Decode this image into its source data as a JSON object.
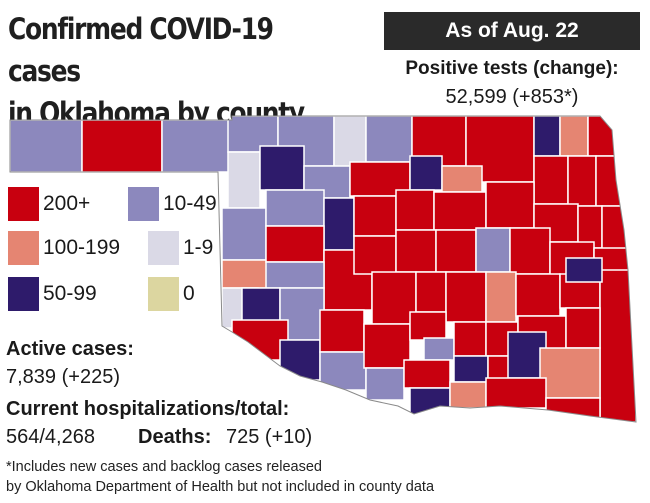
{
  "title_line1": "Confirmed COVID-19 cases",
  "title_line2": "in Oklahoma by county",
  "date_label": "As of Aug. 22",
  "positive_tests": {
    "label": "Positive tests (change):",
    "value": "52,599 (+853*)"
  },
  "legend": [
    {
      "label": "200+",
      "color": "#c8000f"
    },
    {
      "label": "10-49",
      "color": "#8c88bd"
    },
    {
      "label": "100-199",
      "color": "#e58572"
    },
    {
      "label": "1-9",
      "color": "#dad9e6"
    },
    {
      "label": "50-99",
      "color": "#2e1b6b"
    },
    {
      "label": "0",
      "color": "#dcd6a0"
    }
  ],
  "active_cases": {
    "label": "Active cases:",
    "value": "7,839 (+225)"
  },
  "hospitalizations": {
    "label": "Current hospitalizations/total:",
    "value": "564/4,268"
  },
  "deaths": {
    "label": "Deaths:",
    "value": "725 (+10)"
  },
  "footnote": {
    "line1": "*Includes new cases and backlog cases released",
    "line2": "by Oklahoma Department of Health but not included in county data"
  }
}
